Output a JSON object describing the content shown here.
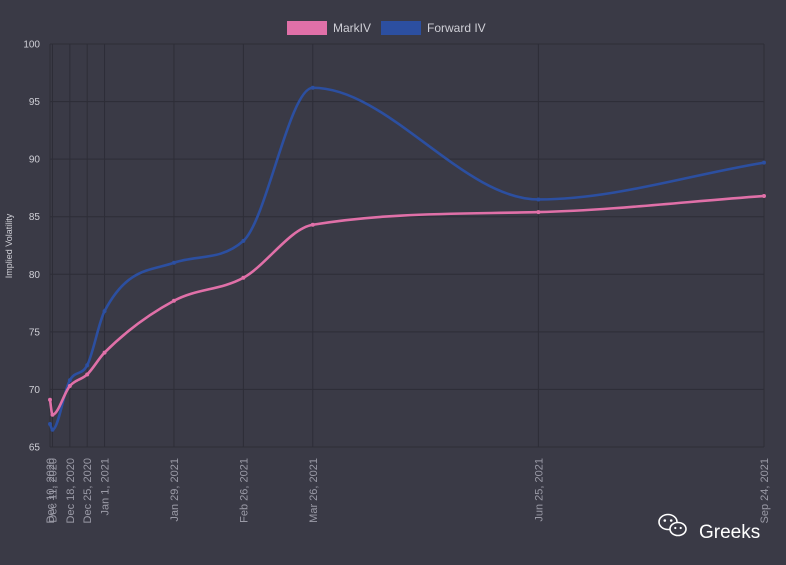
{
  "chart_data": {
    "type": "line",
    "title": "",
    "ylabel": "Implied Volatility",
    "xlabel": "",
    "ylim": [
      65,
      100
    ],
    "yticks": [
      65,
      70,
      75,
      80,
      85,
      90,
      95,
      100
    ],
    "x": [
      "Dec 10, 2020",
      "Dec 11, 2020",
      "Dec 18, 2020",
      "Dec 25, 2020",
      "Jan 1, 2021",
      "Jan 29, 2021",
      "Feb 26, 2021",
      "Mar 26, 2021",
      "Jun 25, 2021",
      "Sep 24, 2021"
    ],
    "x_days": [
      0,
      1,
      8,
      15,
      22,
      50,
      78,
      106,
      197,
      288
    ],
    "grid": true,
    "legend_position": "top-center",
    "series": [
      {
        "name": "MarkIV",
        "color": "#e070a8",
        "values": [
          69.1,
          67.8,
          70.3,
          71.3,
          73.2,
          77.7,
          79.7,
          84.3,
          85.4,
          86.8
        ]
      },
      {
        "name": "Forward IV",
        "color": "#2c4fa0",
        "values": [
          67.0,
          66.5,
          70.8,
          72.1,
          76.8,
          81.0,
          82.9,
          96.2,
          86.5,
          89.7
        ]
      }
    ]
  },
  "watermark": {
    "text": "Greeks",
    "icon": "wechat-icon"
  }
}
